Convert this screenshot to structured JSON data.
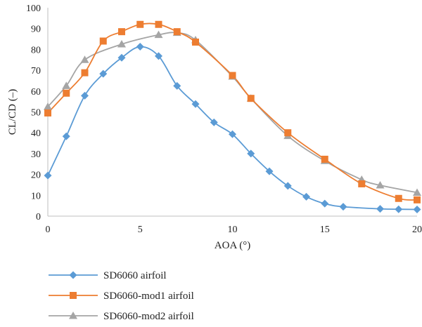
{
  "chart_data": {
    "type": "line",
    "title": "",
    "xlabel": "AOA (°)",
    "ylabel": "CL/CD (–)",
    "xlim": [
      0,
      20
    ],
    "ylim": [
      0,
      100
    ],
    "xticks": [
      0,
      5,
      10,
      15,
      20
    ],
    "yticks": [
      0,
      10,
      20,
      30,
      40,
      50,
      60,
      70,
      80,
      90,
      100
    ],
    "grid": false,
    "legend_position": "bottom-left",
    "series": [
      {
        "name": "SD6060 airfoil",
        "color": "#5b9bd5",
        "marker": "diamond",
        "x": [
          0,
          1,
          2,
          3,
          4,
          5,
          6,
          7,
          8,
          9,
          10,
          11,
          12,
          13,
          14,
          15,
          16,
          18,
          19,
          20
        ],
        "y": [
          19.5,
          38.3,
          57.8,
          68.3,
          76.0,
          81.3,
          76.8,
          62.5,
          53.8,
          45.0,
          39.3,
          30.0,
          21.5,
          14.5,
          9.3,
          6.0,
          4.5,
          3.5,
          3.3,
          3.2
        ]
      },
      {
        "name": "SD6060-mod1 airfoil",
        "color": "#ed7d31",
        "marker": "square",
        "x": [
          0,
          1,
          2,
          3,
          4,
          5,
          6,
          7,
          8,
          10,
          11,
          13,
          15,
          17,
          19,
          20
        ],
        "y": [
          49.5,
          59.0,
          68.8,
          84.0,
          88.5,
          92.0,
          92.0,
          88.5,
          83.5,
          67.5,
          56.5,
          40.0,
          27.3,
          15.5,
          8.5,
          7.8
        ]
      },
      {
        "name": "SD6060-mod2 airfoil",
        "color": "#a5a5a5",
        "marker": "triangle",
        "x": [
          0,
          1,
          2,
          4,
          6,
          7,
          8,
          10,
          11,
          13,
          15,
          17,
          18,
          20
        ],
        "y": [
          52.5,
          62.5,
          75.0,
          82.5,
          87.0,
          88.0,
          84.5,
          67.0,
          56.5,
          38.5,
          26.5,
          17.5,
          14.8,
          11.3
        ]
      }
    ]
  }
}
